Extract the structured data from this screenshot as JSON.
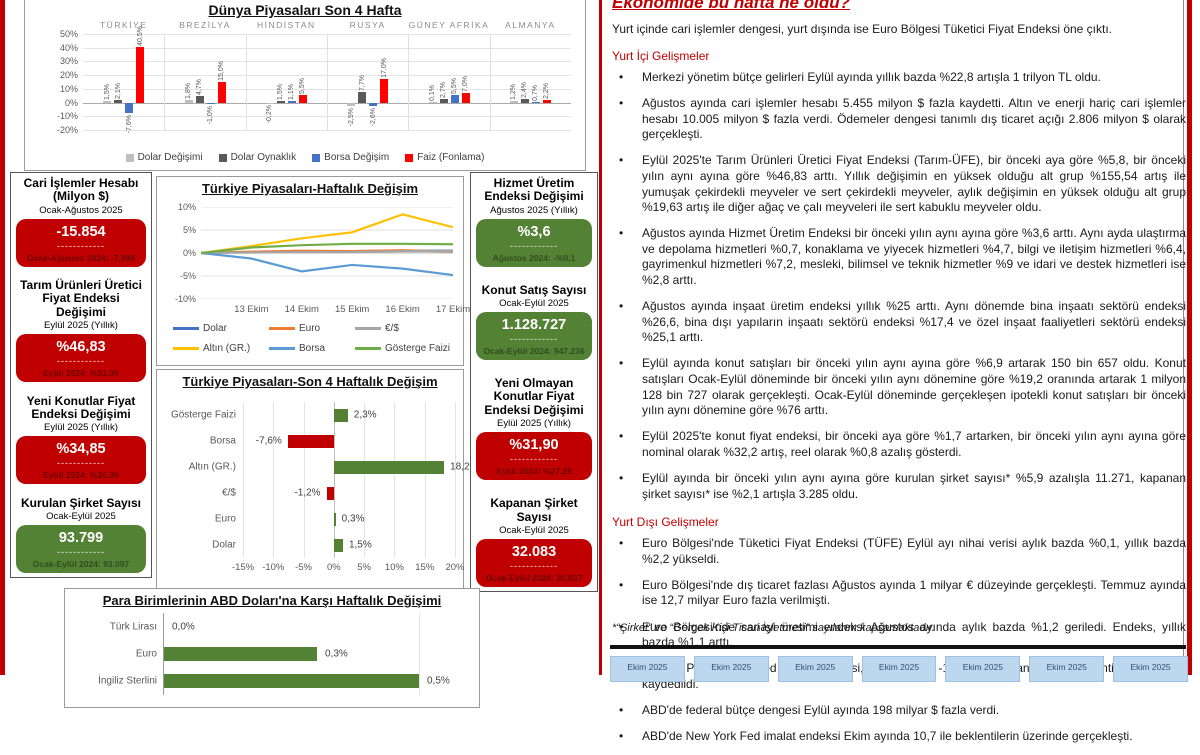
{
  "ui": {
    "dashes": "------------"
  },
  "chart_data": [
    {
      "type": "bar",
      "title": "Dünya Piyasaları Son 4 Hafta",
      "categories": [
        "TÜRKİYE",
        "BREZİLYA",
        "HİNDİSTAN",
        "RUSYA",
        "GÜNEY AFRİKA",
        "ALMANYA"
      ],
      "series": [
        {
          "name": "Dolar Değişimi",
          "color": "#BFBFBF",
          "values": [
            1.5,
            1.8,
            -0.2,
            -2.5,
            0.1,
            1.2
          ],
          "labels": [
            "1,5%",
            "1,8%",
            "-0,2%",
            "-2,5%",
            "0,1%",
            "1,2%"
          ]
        },
        {
          "name": "Dolar Oynaklık",
          "color": "#595959",
          "values": [
            2.1,
            4.7,
            1.5,
            7.7,
            2.7,
            2.4
          ],
          "labels": [
            "2,1%",
            "4,7%",
            "1,5%",
            "7,7%",
            "2,7%",
            "2,4%"
          ]
        },
        {
          "name": "Borsa Değişim",
          "color": "#4472C4",
          "values": [
            -7.6,
            -1.0,
            1.1,
            -2.6,
            5.5,
            0.7
          ],
          "labels": [
            "-7,6%",
            "-1,0%",
            "1,1%",
            "-2,6%",
            "5,5%",
            "0,7%"
          ]
        },
        {
          "name": "Faiz (Fonlama)",
          "color": "#FF0000",
          "values": [
            40.5,
            15.0,
            5.5,
            17.0,
            7.0,
            2.2
          ],
          "labels": [
            "40,5%",
            "15,0%",
            "5,5%",
            "17,0%",
            "7,0%",
            "2,2%"
          ]
        }
      ],
      "ylim": [
        -20,
        50
      ],
      "yticks": [
        "50%",
        "40%",
        "30%",
        "20%",
        "10%",
        "0%",
        "-10%",
        "-20%"
      ],
      "legend_position": "bottom"
    },
    {
      "type": "line",
      "title": "Türkiye Piyasaları-Haftalık Değişim",
      "x": [
        "",
        "13 Ekim",
        "14 Ekim",
        "15 Ekim",
        "16 Ekim",
        "17 Ekim"
      ],
      "series": [
        {
          "name": "Dolar",
          "color": "#4472C4",
          "values": [
            0,
            0.2,
            0.3,
            0.4,
            0.5,
            0.5
          ]
        },
        {
          "name": "Euro",
          "color": "#ED7D31",
          "values": [
            0,
            0.3,
            0.5,
            0.4,
            0.6,
            0.3
          ]
        },
        {
          "name": "€/$",
          "color": "#A5A5A5",
          "values": [
            0,
            0.1,
            0.2,
            0.2,
            0.4,
            0.4
          ]
        },
        {
          "name": "Altın (GR.)",
          "color": "#FFC000",
          "values": [
            0,
            1.5,
            3.2,
            4.5,
            8.4,
            5.6
          ]
        },
        {
          "name": "Borsa",
          "color": "#5B9BD5",
          "values": [
            0,
            -1.2,
            -4.0,
            -2.6,
            -3.4,
            -4.8
          ]
        },
        {
          "name": "Gösterge Faizi",
          "color": "#70AD47",
          "values": [
            0,
            1.2,
            1.7,
            2.0,
            2.0,
            1.9
          ]
        }
      ],
      "ylim": [
        -10,
        10
      ],
      "yticks": [
        "10%",
        "5%",
        "0%",
        "-5%",
        "-10%"
      ],
      "legend_position": "bottom"
    },
    {
      "type": "bar-horizontal",
      "title": "Türkiye Piyasaları-Son 4 Haftalık Değişim",
      "categories": [
        "Gösterge Faizi",
        "Borsa",
        "Altın (GR.)",
        "€/$",
        "Euro",
        "Dolar"
      ],
      "values": [
        2.3,
        -7.6,
        18.2,
        -1.2,
        0.3,
        1.5
      ],
      "labels": [
        "2,3%",
        "-7,6%",
        "18,2%",
        "-1,2%",
        "0,3%",
        "1,5%"
      ],
      "xlim": [
        -15,
        20
      ],
      "xticks": [
        "-15%",
        "-10%",
        "-5%",
        "0%",
        "5%",
        "10%",
        "15%",
        "20%"
      ],
      "positive_color": "#548235",
      "negative_color": "#C00000"
    },
    {
      "type": "bar-horizontal",
      "title": "Para Birimlerinin ABD Doları'na Karşı Haftalık Değişimi",
      "categories": [
        "Türk Lirası",
        "Euro",
        "İngiliz Sterlini"
      ],
      "values": [
        0.0,
        0.3,
        0.5
      ],
      "labels": [
        "0,0%",
        "0,3%",
        "0,5%"
      ],
      "xlim": [
        0,
        0.6
      ],
      "bar_color": "#548235"
    }
  ],
  "left_cards": [
    {
      "title": "Cari İşlemler Hesabı (Milyon $)",
      "period": "Ocak-Ağustos 2025",
      "value": "-15.854",
      "prev": "Ocak-Ağustos 2024: -7.998",
      "color": "red"
    },
    {
      "title": "Tarım Ürünleri Üretici Fiyat Endeksi Değişimi",
      "period": "Eylül 2025 (Yıllık)",
      "value": "%46,83",
      "prev": "Eylül 2024: %31,09",
      "color": "red"
    },
    {
      "title": "Yeni Konutlar Fiyat Endeksi Değişimi",
      "period": "Eylül 2025 (Yıllık)",
      "value": "%34,85",
      "prev": "Eylül 2024: %26,09",
      "color": "red"
    },
    {
      "title": "Kurulan Şirket Sayısı",
      "period": "Ocak-Eylül 2025",
      "value": "93.799",
      "prev": "Ocak-Eylül 2024: 93.097",
      "color": "green"
    }
  ],
  "right_cards": [
    {
      "title": "Hizmet Üretim Endeksi Değişimi",
      "period": "Ağustos 2025 (Yıllık)",
      "value": "%3,6",
      "prev": "Ağustos 2024: -%0,1",
      "color": "green"
    },
    {
      "title": "Konut Satış Sayısı",
      "period": "Ocak-Eylül 2025",
      "value": "1.128.727",
      "prev": "Ocak-Eylül 2024: 947.236",
      "color": "green"
    },
    {
      "title": "Yeni Olmayan Konutlar Fiyat Endeksi Değişimi",
      "period": "Eylül 2025 (Yıllık)",
      "value": "%31,90",
      "prev": "Eylül 2024: %27,25",
      "color": "red"
    },
    {
      "title": "Kapanan Şirket Sayısı",
      "period": "Ocak-Eylül 2025",
      "value": "32.083",
      "prev": "Ocak-Eylül 2024: 30.837",
      "color": "red"
    }
  ],
  "right_panel": {
    "title": "Ekonomide bu hafta ne oldu?",
    "intro": "Yurt içinde cari işlemler dengesi, yurt dışında ise Euro Bölgesi Tüketici Fiyat Endeksi öne çıktı.",
    "domestic": {
      "heading": "Yurt İçi Gelişmeler",
      "bullets": [
        "Merkezi yönetim bütçe gelirleri Eylül ayında yıllık bazda %22,8 artışla 1 trilyon TL oldu.",
        "Ağustos ayında cari işlemler hesabı 5.455 milyon $ fazla kaydetti. Altın ve enerji hariç cari işlemler hesabı 10.005 milyon $ fazla verdi. Ödemeler dengesi tanımlı dış ticaret açığı 2.806 milyon $ olarak gerçekleşti.",
        "Eylül 2025'te Tarım Ürünleri Üretici Fiyat Endeksi (Tarım-ÜFE), bir önceki aya göre %5,8, bir önceki yılın aynı ayına göre %46,83 arttı. Yıllık değişimin en yüksek olduğu alt grup %155,54 artış ile yumuşak çekirdekli meyveler ve sert çekirdekli meyveler, aylık değişimin en yüksek olduğu alt grup %19,63 artış ile diğer ağaç ve çalı meyveleri ile sert kabuklu meyveler oldu.",
        "Ağustos ayında Hizmet Üretim Endeksi bir önceki yılın aynı ayına göre %3,6 arttı. Aynı ayda ulaştırma ve depolama hizmetleri %0,7, konaklama ve yiyecek hizmetleri %4,7, bilgi ve iletişim hizmetleri %6,4, gayrimenkul hizmetleri %7,2, mesleki, bilimsel ve teknik hizmetler %9 ve idari ve destek hizmetleri ise %2,8 arttı.",
        "Ağustos ayında inşaat üretim endeksi yıllık %25 arttı. Aynı dönemde bina inşaatı sektörü endeksi %26,6, bina dışı yapıların inşaatı sektörü endeksi %17,4 ve özel inşaat faaliyetleri sektörü endeksi %25,1 arttı.",
        "Eylül ayında konut satışları bir önceki yılın aynı ayına göre %6,9 artarak 150 bin 657 oldu. Konut satışları Ocak-Eylül döneminde bir önceki yılın aynı dönemine göre %19,2 oranında artarak 1 milyon 128 bin 727 olarak gerçekleşti. Ocak-Eylül döneminde gerçekleşen ipotekli konut satışları bir önceki yılın aynı dönemine göre %76 arttı.",
        "Eylül 2025'te konut fiyat endeksi, bir önceki aya göre %1,7 artarken, bir önceki yılın aynı ayına göre nominal olarak %32,2 artış, reel olarak %0,8 azalış gösterdi.",
        "Eylül ayında bir önceki yılın aynı ayına göre kurulan şirket sayısı* %5,9 azalışla 11.271, kapanan şirket sayısı* ise %2,1 artışla 3.285 oldu."
      ]
    },
    "foreign": {
      "heading": "Yurt Dışı Gelişmeler",
      "bullets": [
        "Euro Bölgesi'nde Tüketici Fiyat Endeksi (TÜFE) Eylül ayı nihai verisi aylık bazda %0,1, yıllık bazda %2,2 yükseldi.",
        "Euro Bölgesi'nde dış ticaret fazlası Ağustos ayında 1 milyar € düzeyinde gerçekleşti. Temmuz ayında ise 12,7 milyar Euro fazla verilmişti.",
        "Euro Bölgesi'nde sanayi üretimi endeksi Ağustos ayında aylık bazda %1,2 geriledi. Endeks, yıllık bazda %1,1 arttı.",
        "ABD'de Philadelphia Fed İmalat Endeksi, Ekim ayında -12,8 ile 8,6 olan piyasa beklentilerinin altında kaydedildi.",
        "ABD'de federal bütçe dengesi Eylül ayında 198 milyar $ fazla verdi.",
        "ABD'de New York Fed imalat endeksi Ekim ayında 10,7 ile beklentilerin üzerinde gerçekleşti."
      ]
    },
    "footnote": "*“Şirket” ve “Gerçek Kişi Ticari İşletmesi” sayılarını kapsamaktadır.",
    "footer_boxes": [
      "Ekim 2025",
      "Ekim 2025",
      "Ekim 2025",
      "Ekim 2025",
      "Ekim 2025",
      "Ekim 2025",
      "Ekim 2025"
    ]
  }
}
